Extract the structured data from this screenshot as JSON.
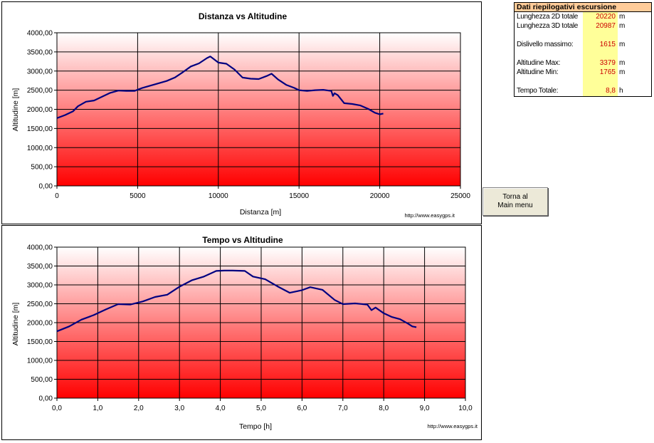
{
  "summary": {
    "header": "Dati riepilogativi escursione",
    "rows": [
      {
        "label": "Lunghezza 2D totale",
        "value": "20220",
        "unit": "m"
      },
      {
        "label": "Lunghezza 3D totale",
        "value": "20987",
        "unit": "m"
      },
      {
        "label": "Dislivello massimo:",
        "value": "1615",
        "unit": "m"
      },
      {
        "label": "Altitudine Max:",
        "value": "3379",
        "unit": "m"
      },
      {
        "label": "Altitudine Min:",
        "value": "1765",
        "unit": "m"
      },
      {
        "label": "Tempo Totale:",
        "value": "8,8",
        "unit": "h"
      }
    ]
  },
  "return_button": {
    "line1": "Torna al",
    "line2": "Main menu"
  },
  "colors": {
    "line": "#000080",
    "gradient_top": "#ffffff",
    "gradient_bottom": "#ff0000",
    "value_text": "#cc0000",
    "header_bg": "#ffcc99",
    "value_bg": "#ffff99"
  },
  "chart_data": [
    {
      "type": "line",
      "title": "Distanza vs Altitudine",
      "xlabel": "Distanza [m]",
      "ylabel": "Altitudine [m]",
      "credit": "http://www.easygps.it",
      "xlim": [
        0,
        25000
      ],
      "ylim": [
        0,
        4000
      ],
      "xticks": [
        0,
        5000,
        10000,
        15000,
        20000,
        25000
      ],
      "xtick_labels": [
        "0",
        "5000",
        "10000",
        "15000",
        "20000",
        "25000"
      ],
      "yticks": [
        0,
        500,
        1000,
        1500,
        2000,
        2500,
        3000,
        3500,
        4000
      ],
      "ytick_labels": [
        "0,00",
        "500,00",
        "1000,00",
        "1500,00",
        "2000,00",
        "2500,00",
        "3000,00",
        "3500,00",
        "4000,00"
      ],
      "grid": true,
      "background": "gradient white to red",
      "series": [
        {
          "x": [
            0,
            500,
            1000,
            1300,
            1800,
            2300,
            2800,
            3300,
            3800,
            4300,
            4800,
            5300,
            5800,
            6300,
            6800,
            7300,
            7800,
            8300,
            8800,
            9300,
            9500,
            9700,
            10000,
            10500,
            11000,
            11500,
            12000,
            12500,
            13000,
            13300,
            13700,
            14200,
            14700,
            15000,
            15500,
            16000,
            16500,
            17000,
            17100,
            17200,
            17400,
            17800,
            18300,
            18800,
            19300,
            19700,
            20000,
            20220
          ],
          "y": [
            1770,
            1850,
            1950,
            2080,
            2200,
            2230,
            2330,
            2430,
            2490,
            2480,
            2480,
            2560,
            2620,
            2680,
            2740,
            2830,
            2970,
            3120,
            3200,
            3340,
            3380,
            3320,
            3220,
            3190,
            3040,
            2830,
            2800,
            2790,
            2870,
            2930,
            2780,
            2640,
            2560,
            2500,
            2480,
            2500,
            2510,
            2480,
            2350,
            2420,
            2370,
            2160,
            2140,
            2100,
            2010,
            1910,
            1870,
            1890
          ]
        }
      ]
    },
    {
      "type": "line",
      "title": "Tempo vs Altitudine",
      "xlabel": "Tempo [h]",
      "ylabel": "Altitudine [m]",
      "credit": "http://www.easygps.it",
      "xlim": [
        0,
        10
      ],
      "ylim": [
        0,
        4000
      ],
      "xticks": [
        0,
        1,
        2,
        3,
        4,
        5,
        6,
        7,
        8,
        9,
        10
      ],
      "xtick_labels": [
        "0,0",
        "1,0",
        "2,0",
        "3,0",
        "4,0",
        "5,0",
        "6,0",
        "7,0",
        "8,0",
        "9,0",
        "10,0"
      ],
      "yticks": [
        0,
        500,
        1000,
        1500,
        2000,
        2500,
        3000,
        3500,
        4000
      ],
      "ytick_labels": [
        "0,00",
        "500,00",
        "1000,00",
        "1500,00",
        "2000,00",
        "2500,00",
        "3000,00",
        "3500,00",
        "4000,00"
      ],
      "grid": true,
      "background": "gradient white to red",
      "series": [
        {
          "x": [
            0,
            0.3,
            0.6,
            0.9,
            1.2,
            1.5,
            1.8,
            2.1,
            2.4,
            2.7,
            3.0,
            3.3,
            3.6,
            3.9,
            4.1,
            4.3,
            4.6,
            4.8,
            5.1,
            5.4,
            5.7,
            6.0,
            6.2,
            6.5,
            6.8,
            7.0,
            7.3,
            7.6,
            7.7,
            7.8,
            8.0,
            8.2,
            8.4,
            8.6,
            8.7,
            8.8
          ],
          "y": [
            1770,
            1900,
            2080,
            2200,
            2350,
            2490,
            2480,
            2560,
            2680,
            2740,
            2950,
            3120,
            3220,
            3370,
            3380,
            3380,
            3370,
            3220,
            3150,
            2960,
            2790,
            2860,
            2940,
            2870,
            2600,
            2490,
            2510,
            2480,
            2330,
            2400,
            2250,
            2150,
            2090,
            1970,
            1900,
            1880
          ]
        }
      ]
    }
  ]
}
